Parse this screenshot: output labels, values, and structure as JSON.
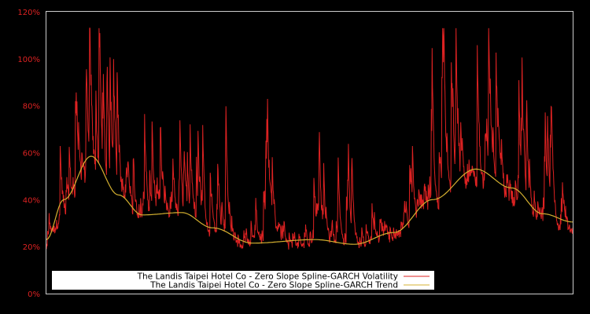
{
  "chart_data": {
    "type": "line",
    "title": "",
    "xlabel": "",
    "ylabel": "",
    "ylim": [
      0,
      120
    ],
    "yticks": [
      "0%",
      "20%",
      "40%",
      "60%",
      "80%",
      "100%",
      "120%"
    ],
    "ytick_values": [
      0,
      20,
      40,
      60,
      80,
      100,
      120
    ],
    "grid": false,
    "legend_position": "lower center",
    "colors": {
      "background": "#000000",
      "axis_frame": "#cccccc",
      "tick_labels": "#dd2222",
      "volatility": "#dd2222",
      "trend": "#d4b030",
      "legend_bg": "#ffffff"
    },
    "series": [
      {
        "name": "The Landis Taipei Hotel Co - Zero Slope Spline-GARCH Volatility",
        "style": "noisy spiky series, baseline roughly tracking trend minus 5-10%, spikes up to ~113%",
        "approx_peaks_pct": [
          72,
          80,
          84,
          64,
          47,
          50,
          47,
          46,
          49,
          47,
          95,
          100,
          113,
          105,
          97,
          86,
          64
        ]
      },
      {
        "name": "The Landis Taipei Hotel Co - Zero Slope Spline-GARCH Trend",
        "x_frac": [
          0.0,
          0.033,
          0.085,
          0.137,
          0.182,
          0.257,
          0.316,
          0.391,
          0.51,
          0.585,
          0.66,
          0.734,
          0.816,
          0.884,
          0.943,
          1.0
        ],
        "values": [
          23,
          40,
          58.5,
          42,
          33.5,
          34.5,
          28,
          21.5,
          23,
          21,
          26,
          40,
          53,
          45,
          34,
          30.5
        ]
      }
    ]
  },
  "legend": {
    "items": [
      {
        "label": "The Landis Taipei Hotel Co - Zero Slope Spline-GARCH Volatility",
        "color": "#dd2222"
      },
      {
        "label": "The Landis Taipei Hotel Co - Zero Slope Spline-GARCH Trend",
        "color": "#d4b030"
      }
    ]
  }
}
